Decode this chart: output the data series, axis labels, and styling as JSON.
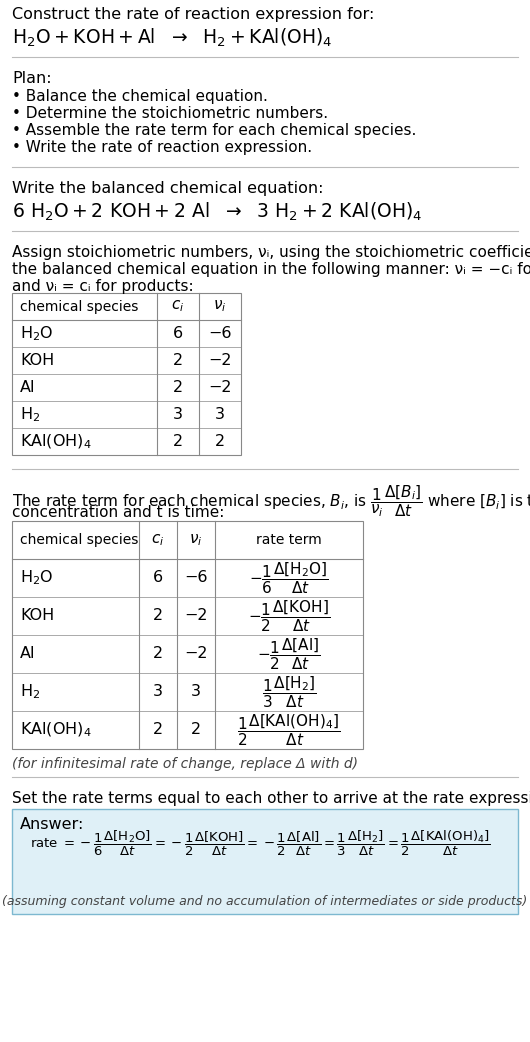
{
  "bg_color": "#ffffff",
  "title_line1": "Construct the rate of reaction expression for:",
  "plan_title": "Plan:",
  "plan_items": [
    "• Balance the chemical equation.",
    "• Determine the stoichiometric numbers.",
    "• Assemble the rate term for each chemical species.",
    "• Write the rate of reaction expression."
  ],
  "balanced_intro": "Write the balanced chemical equation:",
  "stoich_intro_line1": "Assign stoichiometric numbers, νᵢ, using the stoichiometric coefficients, cᵢ, from",
  "stoich_intro_line2": "the balanced chemical equation in the following manner: νᵢ = −cᵢ for reactants",
  "stoich_intro_line3": "and νᵢ = cᵢ for products:",
  "rate_intro_line2": "concentration and t is time:",
  "infinitesimal_note": "(for infinitesimal rate of change, replace Δ with d)",
  "set_equal_text": "Set the rate terms equal to each other to arrive at the rate expression:",
  "answer_bg": "#dff0f7",
  "answer_border": "#8bbdd4",
  "answer_label": "Answer:",
  "footer_note": "(assuming constant volume and no accumulation of intermediates or side products)"
}
